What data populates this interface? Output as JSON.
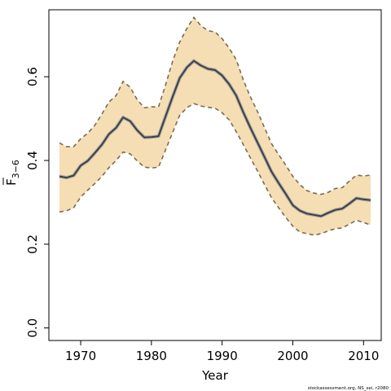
{
  "chart_data": {
    "type": "line",
    "xlabel": "Year",
    "ylabel": {
      "main": "F",
      "subscript": "3−6"
    },
    "xlim": [
      1965.5,
      2012.5
    ],
    "ylim": [
      -0.03,
      0.76
    ],
    "xticks": [
      1970,
      1980,
      1990,
      2000,
      2010
    ],
    "yticks": [
      0.0,
      0.2,
      0.4,
      0.6
    ],
    "ytick_labels": [
      "0.0",
      "0.2",
      "0.4",
      "0.6"
    ],
    "grid": false,
    "legend": "none",
    "x": [
      1967,
      1968,
      1969,
      1970,
      1971,
      1972,
      1973,
      1974,
      1975,
      1976,
      1977,
      1978,
      1979,
      1980,
      1981,
      1982,
      1983,
      1984,
      1985,
      1986,
      1987,
      1988,
      1989,
      1990,
      1991,
      1992,
      1993,
      1994,
      1995,
      1996,
      1997,
      1998,
      1999,
      2000,
      2001,
      2002,
      2003,
      2004,
      2005,
      2006,
      2007,
      2008,
      2009,
      2010,
      2011
    ],
    "series": [
      {
        "role": "estimate",
        "color": "#404040",
        "values": [
          0.362,
          0.359,
          0.364,
          0.388,
          0.399,
          0.418,
          0.438,
          0.463,
          0.478,
          0.503,
          0.494,
          0.472,
          0.455,
          0.456,
          0.458,
          0.505,
          0.552,
          0.597,
          0.622,
          0.638,
          0.627,
          0.619,
          0.616,
          0.603,
          0.582,
          0.555,
          0.515,
          0.478,
          0.443,
          0.408,
          0.373,
          0.346,
          0.32,
          0.293,
          0.28,
          0.273,
          0.27,
          0.267,
          0.275,
          0.282,
          0.285,
          0.297,
          0.31,
          0.307,
          0.305
        ]
      },
      {
        "role": "upper",
        "color": "#7a6a55",
        "values": [
          0.442,
          0.433,
          0.433,
          0.452,
          0.465,
          0.484,
          0.511,
          0.54,
          0.555,
          0.589,
          0.575,
          0.545,
          0.526,
          0.528,
          0.528,
          0.58,
          0.637,
          0.683,
          0.715,
          0.742,
          0.722,
          0.71,
          0.707,
          0.691,
          0.668,
          0.641,
          0.592,
          0.552,
          0.517,
          0.478,
          0.44,
          0.414,
          0.389,
          0.362,
          0.342,
          0.328,
          0.322,
          0.319,
          0.324,
          0.333,
          0.335,
          0.351,
          0.365,
          0.363,
          0.365
        ]
      },
      {
        "role": "lower",
        "color": "#7a6a55",
        "values": [
          0.277,
          0.28,
          0.287,
          0.313,
          0.329,
          0.345,
          0.362,
          0.383,
          0.4,
          0.42,
          0.416,
          0.399,
          0.384,
          0.382,
          0.384,
          0.425,
          0.467,
          0.508,
          0.526,
          0.536,
          0.53,
          0.527,
          0.525,
          0.514,
          0.497,
          0.469,
          0.438,
          0.406,
          0.375,
          0.342,
          0.311,
          0.287,
          0.264,
          0.243,
          0.229,
          0.225,
          0.222,
          0.225,
          0.232,
          0.237,
          0.239,
          0.248,
          0.257,
          0.252,
          0.246
        ]
      }
    ],
    "band_color": "#f5deb3",
    "credit": "stockassessment.org, NS_sei, r2080"
  }
}
